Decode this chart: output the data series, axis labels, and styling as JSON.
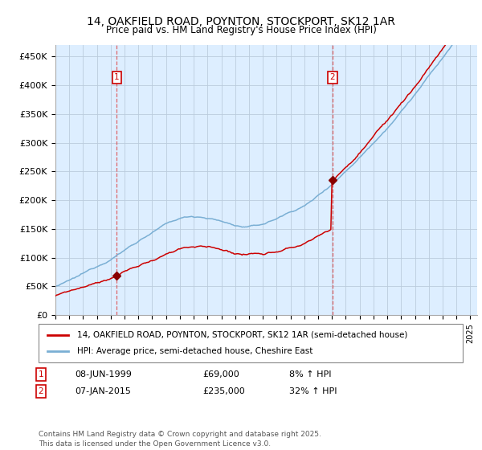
{
  "title": "14, OAKFIELD ROAD, POYNTON, STOCKPORT, SK12 1AR",
  "subtitle": "Price paid vs. HM Land Registry's House Price Index (HPI)",
  "red_label": "14, OAKFIELD ROAD, POYNTON, STOCKPORT, SK12 1AR (semi-detached house)",
  "blue_label": "HPI: Average price, semi-detached house, Cheshire East",
  "footnote": "Contains HM Land Registry data © Crown copyright and database right 2025.\nThis data is licensed under the Open Government Licence v3.0.",
  "transaction1": {
    "num": "1",
    "date": "08-JUN-1999",
    "price": "£69,000",
    "hpi": "8% ↑ HPI"
  },
  "transaction2": {
    "num": "2",
    "date": "07-JAN-2015",
    "price": "£235,000",
    "hpi": "32% ↑ HPI"
  },
  "vline1_x": 1999.44,
  "vline2_x": 2015.04,
  "marker1_price": 69000,
  "marker2_price": 235000,
  "ylim": [
    0,
    470000
  ],
  "yticks": [
    0,
    50000,
    100000,
    150000,
    200000,
    250000,
    300000,
    350000,
    400000,
    450000
  ],
  "ytick_labels": [
    "£0",
    "£50K",
    "£100K",
    "£150K",
    "£200K",
    "£250K",
    "£300K",
    "£350K",
    "£400K",
    "£450K"
  ],
  "red_color": "#cc0000",
  "blue_color": "#7aafd4",
  "plot_bg_color": "#ddeeff",
  "vline_color": "#dd4444",
  "marker_color": "#880000",
  "bg_color": "#ffffff",
  "grid_color": "#bbccdd",
  "title_fontsize": 10,
  "subtitle_fontsize": 9,
  "xlim_left": 1995,
  "xlim_right": 2025.5
}
